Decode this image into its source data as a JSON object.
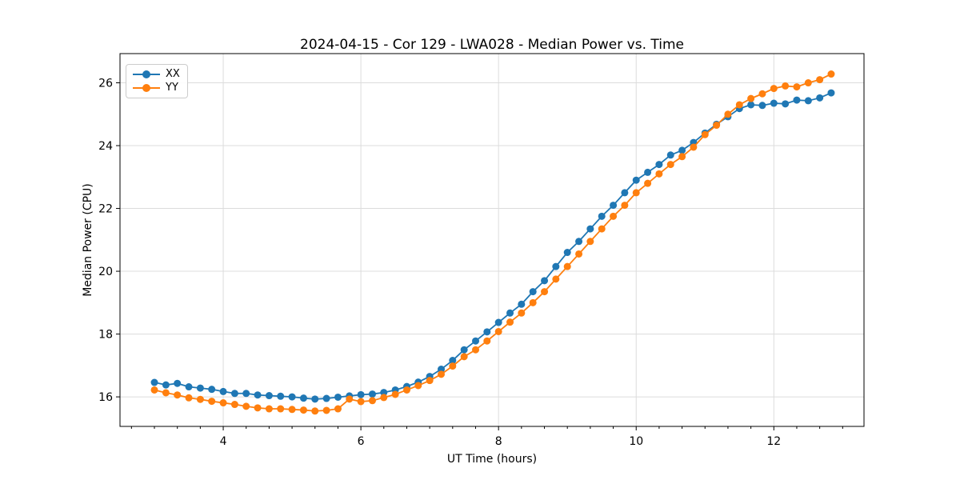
{
  "figure": {
    "background": "#ffffff",
    "text_color": "#000000",
    "grid_color": "#dcdcdc",
    "spine_color": "#000000"
  },
  "chart_data": {
    "type": "line",
    "title": "2024-04-15 - Cor 129 - LWA028 - Median Power vs. Time",
    "xlabel": "UT Time (hours)",
    "ylabel": "Median Power (CPU)",
    "xlim": [
      2.5,
      13.31
    ],
    "ylim": [
      15.06,
      26.93
    ],
    "xticks": [
      4,
      6,
      8,
      10,
      12
    ],
    "yticks": [
      16,
      18,
      20,
      22,
      24,
      26
    ],
    "x_minor_step": 0.33333,
    "grid": true,
    "legend_position": "upper-left",
    "x": [
      3.0,
      3.167,
      3.333,
      3.5,
      3.667,
      3.833,
      4.0,
      4.167,
      4.333,
      4.5,
      4.667,
      4.833,
      5.0,
      5.167,
      5.333,
      5.5,
      5.667,
      5.833,
      6.0,
      6.167,
      6.333,
      6.5,
      6.667,
      6.833,
      7.0,
      7.167,
      7.333,
      7.5,
      7.667,
      7.833,
      8.0,
      8.167,
      8.333,
      8.5,
      8.667,
      8.833,
      9.0,
      9.167,
      9.333,
      9.5,
      9.667,
      9.833,
      10.0,
      10.167,
      10.333,
      10.5,
      10.667,
      10.833,
      11.0,
      11.167,
      11.333,
      11.5,
      11.667,
      11.833,
      12.0,
      12.167,
      12.333,
      12.5,
      12.667,
      12.833
    ],
    "series": [
      {
        "name": "XX",
        "color": "#1f77b4",
        "values": [
          16.46,
          16.38,
          16.43,
          16.32,
          16.28,
          16.24,
          16.17,
          16.11,
          16.11,
          16.06,
          16.04,
          16.02,
          16.0,
          15.96,
          15.93,
          15.95,
          15.99,
          16.03,
          16.07,
          16.09,
          16.14,
          16.22,
          16.33,
          16.47,
          16.65,
          16.88,
          17.16,
          17.5,
          17.78,
          18.07,
          18.37,
          18.67,
          18.95,
          19.35,
          19.7,
          20.15,
          20.6,
          20.95,
          21.35,
          21.75,
          22.1,
          22.5,
          22.9,
          23.15,
          23.4,
          23.7,
          23.85,
          24.1,
          24.4,
          24.68,
          24.92,
          25.18,
          25.3,
          25.28,
          25.35,
          25.33,
          25.45,
          25.43,
          25.52,
          25.68
        ]
      },
      {
        "name": "YY",
        "color": "#ff7f0e",
        "values": [
          16.22,
          16.13,
          16.06,
          15.97,
          15.92,
          15.86,
          15.81,
          15.76,
          15.7,
          15.65,
          15.62,
          15.62,
          15.6,
          15.58,
          15.55,
          15.57,
          15.62,
          15.93,
          15.85,
          15.88,
          15.98,
          16.08,
          16.22,
          16.36,
          16.52,
          16.72,
          16.98,
          17.28,
          17.5,
          17.78,
          18.08,
          18.38,
          18.67,
          19.0,
          19.35,
          19.75,
          20.15,
          20.55,
          20.95,
          21.35,
          21.75,
          22.1,
          22.5,
          22.8,
          23.1,
          23.4,
          23.65,
          23.95,
          24.35,
          24.65,
          25.0,
          25.3,
          25.5,
          25.65,
          25.82,
          25.9,
          25.87,
          26.0,
          26.1,
          26.28
        ]
      }
    ]
  }
}
